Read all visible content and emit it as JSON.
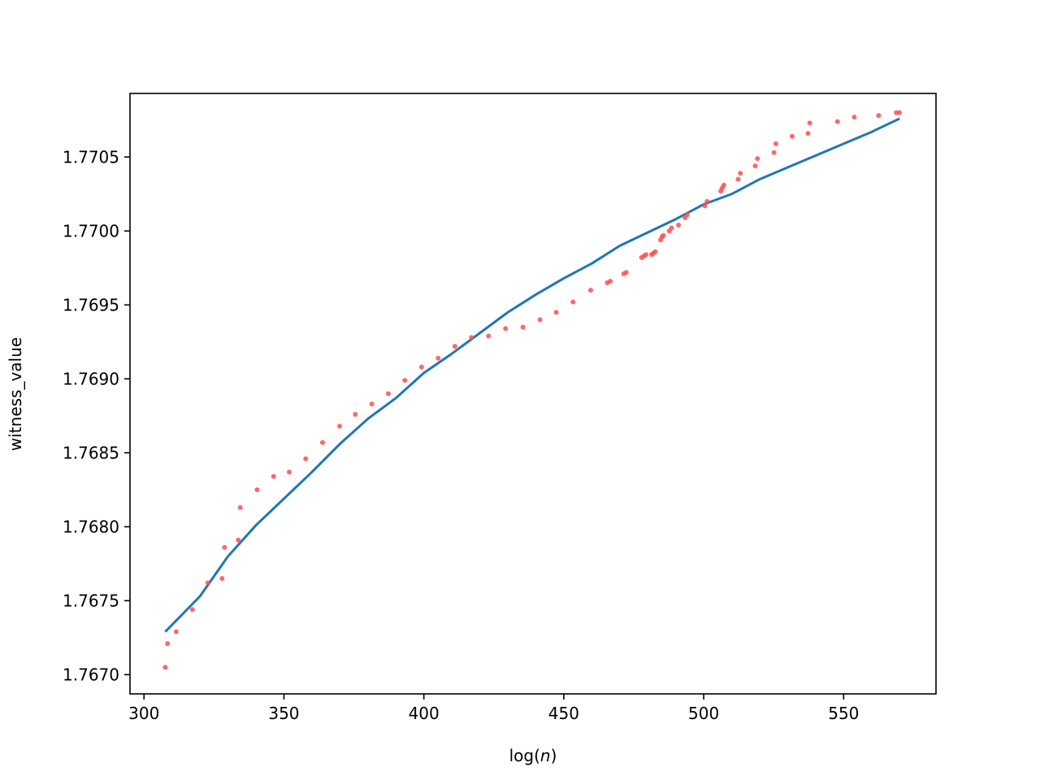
{
  "chart_data": {
    "type": "scatter",
    "title": "",
    "xlabel": "log(n)",
    "xlabel_parts": {
      "prefix": "log(",
      "var": "n",
      "suffix": ")"
    },
    "ylabel": "witness_value",
    "xlim": [
      295,
      583
    ],
    "ylim": [
      1.76687,
      1.77093
    ],
    "xticks": [
      300,
      350,
      400,
      450,
      500,
      550
    ],
    "xtick_labels": [
      "300",
      "350",
      "400",
      "450",
      "500",
      "550"
    ],
    "yticks": [
      1.767,
      1.7675,
      1.768,
      1.7685,
      1.769,
      1.7695,
      1.77,
      1.7705
    ],
    "ytick_labels": [
      "1.7670",
      "1.7675",
      "1.7680",
      "1.7685",
      "1.7690",
      "1.7695",
      "1.7700",
      "1.7705"
    ],
    "grid": false,
    "series": [
      {
        "type": "scatter",
        "color": "#ff4d4d",
        "points": [
          [
            307.6,
            1.76705
          ],
          [
            308.4,
            1.76721
          ],
          [
            311.5,
            1.76729
          ],
          [
            317.3,
            1.76744
          ],
          [
            322.8,
            1.76762
          ],
          [
            327.9,
            1.76765
          ],
          [
            328.8,
            1.76786
          ],
          [
            333.7,
            1.76791
          ],
          [
            334.4,
            1.76813
          ],
          [
            340.4,
            1.76825
          ],
          [
            346.3,
            1.76834
          ],
          [
            351.9,
            1.76837
          ],
          [
            357.8,
            1.76846
          ],
          [
            363.8,
            1.76857
          ],
          [
            369.9,
            1.76868
          ],
          [
            375.5,
            1.76876
          ],
          [
            381.4,
            1.76883
          ],
          [
            387.3,
            1.7689
          ],
          [
            393.2,
            1.76899
          ],
          [
            399.2,
            1.76908
          ],
          [
            405.1,
            1.76914
          ],
          [
            411.1,
            1.76922
          ],
          [
            417.0,
            1.76928
          ],
          [
            423.1,
            1.76929
          ],
          [
            429.2,
            1.76934
          ],
          [
            435.4,
            1.76935
          ],
          [
            441.5,
            1.7694
          ],
          [
            447.3,
            1.76945
          ],
          [
            453.3,
            1.76952
          ],
          [
            459.6,
            1.7696
          ],
          [
            465.5,
            1.76965
          ],
          [
            466.6,
            1.76966
          ],
          [
            471.4,
            1.76971
          ],
          [
            472.3,
            1.76972
          ],
          [
            477.8,
            1.76982
          ],
          [
            478.6,
            1.76983
          ],
          [
            479.4,
            1.76984
          ],
          [
            481.4,
            1.76984
          ],
          [
            482.0,
            1.76985
          ],
          [
            482.7,
            1.76986
          ],
          [
            484.6,
            1.76994
          ],
          [
            485.1,
            1.76996
          ],
          [
            485.6,
            1.76997
          ],
          [
            487.7,
            1.77
          ],
          [
            488.5,
            1.77002
          ],
          [
            491.0,
            1.77004
          ],
          [
            493.3,
            1.77009
          ],
          [
            494.1,
            1.77011
          ],
          [
            500.4,
            1.77017
          ],
          [
            501.2,
            1.7702
          ],
          [
            506.1,
            1.77027
          ],
          [
            506.6,
            1.77029
          ],
          [
            507.2,
            1.77031
          ],
          [
            512.3,
            1.77035
          ],
          [
            513.1,
            1.77039
          ],
          [
            518.4,
            1.77044
          ],
          [
            519.2,
            1.77049
          ],
          [
            525.1,
            1.77053
          ],
          [
            525.8,
            1.77059
          ],
          [
            531.6,
            1.77064
          ],
          [
            537.3,
            1.77066
          ],
          [
            537.9,
            1.77073
          ],
          [
            547.8,
            1.77074
          ],
          [
            553.8,
            1.77077
          ],
          [
            562.5,
            1.77078
          ],
          [
            568.8,
            1.7708
          ],
          [
            569.9,
            1.7708
          ]
        ]
      },
      {
        "type": "line",
        "color": "#1f77b4",
        "points": [
          [
            307.6,
            1.76729
          ],
          [
            320,
            1.76753
          ],
          [
            330,
            1.7678
          ],
          [
            340,
            1.76801
          ],
          [
            350,
            1.76819
          ],
          [
            360,
            1.76837
          ],
          [
            370,
            1.76856
          ],
          [
            380,
            1.76873
          ],
          [
            390,
            1.76887
          ],
          [
            400,
            1.76904
          ],
          [
            410,
            1.76917
          ],
          [
            420,
            1.76931
          ],
          [
            430,
            1.76945
          ],
          [
            440,
            1.76957
          ],
          [
            450,
            1.76968
          ],
          [
            460,
            1.76978
          ],
          [
            470,
            1.7699
          ],
          [
            480,
            1.76999
          ],
          [
            490,
            1.77008
          ],
          [
            500,
            1.77018
          ],
          [
            510,
            1.77025
          ],
          [
            520,
            1.77035
          ],
          [
            530,
            1.77043
          ],
          [
            540,
            1.77051
          ],
          [
            550,
            1.77059
          ],
          [
            560,
            1.77067
          ],
          [
            570,
            1.77076
          ]
        ]
      }
    ]
  }
}
